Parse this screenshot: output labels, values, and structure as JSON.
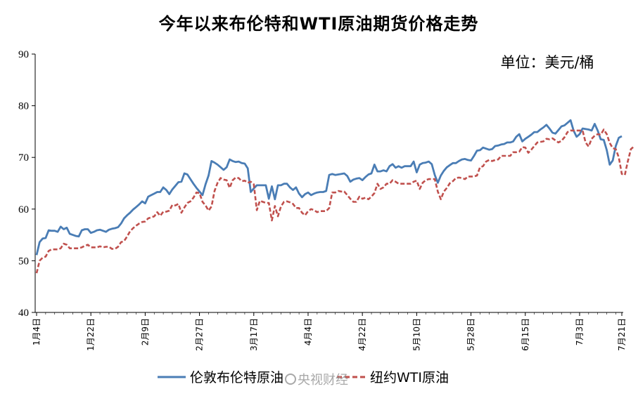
{
  "chart_data": {
    "type": "line",
    "title": "今年以来布伦特和WTI原油期货价格走势",
    "unit_label": "单位：美元/桶",
    "ylim": [
      40,
      90
    ],
    "yticks": [
      "40",
      "50",
      "60",
      "70",
      "80",
      "90"
    ],
    "xtick_labels": [
      "1月4日",
      "1月22日",
      "2月9日",
      "2月27日",
      "3月17日",
      "4月4日",
      "4月22日",
      "5月10日",
      "5月28日",
      "6月15日",
      "7月3日",
      "7月21日"
    ],
    "grid": false,
    "legend_position": "bottom",
    "series": [
      {
        "name": "伦敦布伦特原油",
        "color": "#4a7db5",
        "style": "solid",
        "values": [
          51.1,
          53.6,
          54.3,
          54.4,
          55.9,
          55.8,
          55.8,
          55.6,
          56.6,
          56.1,
          56.4,
          55.2,
          55.0,
          54.8,
          54.7,
          55.9,
          56.1,
          56.1,
          55.4,
          55.6,
          55.9,
          56.0,
          55.8,
          55.6,
          56.0,
          56.2,
          56.3,
          56.5,
          57.2,
          58.2,
          58.8,
          59.3,
          59.9,
          60.4,
          60.9,
          61.5,
          61.1,
          62.4,
          62.7,
          63.0,
          63.3,
          63.3,
          64.2,
          63.7,
          62.9,
          63.8,
          64.5,
          65.2,
          65.3,
          66.9,
          66.7,
          65.8,
          64.9,
          64.1,
          63.4,
          62.7,
          64.8,
          66.5,
          69.3,
          69.0,
          68.6,
          68.1,
          67.6,
          68.1,
          69.6,
          69.3,
          69.1,
          69.2,
          68.9,
          68.8,
          67.9,
          63.3,
          64.0,
          64.6,
          64.6,
          64.6,
          64.6,
          62.0,
          64.4,
          61.9,
          64.6,
          64.6,
          64.9,
          64.9,
          64.2,
          63.7,
          64.2,
          63.0,
          62.3,
          62.9,
          63.2,
          62.7,
          63.0,
          63.2,
          63.3,
          63.3,
          63.5,
          66.6,
          66.8,
          66.6,
          66.7,
          66.8,
          66.9,
          66.4,
          65.3,
          65.7,
          65.9,
          66.0,
          65.6,
          66.2,
          66.7,
          66.9,
          68.6,
          67.3,
          67.3,
          67.5,
          67.3,
          68.3,
          68.7,
          68.0,
          68.3,
          68.0,
          68.3,
          68.3,
          68.3,
          69.2,
          67.1,
          68.6,
          68.9,
          69.0,
          69.2,
          68.7,
          66.6,
          65.1,
          66.5,
          67.4,
          68.1,
          68.5,
          68.9,
          68.9,
          69.3,
          69.6,
          69.7,
          69.5,
          69.4,
          70.3,
          71.3,
          71.4,
          71.9,
          71.7,
          71.5,
          71.6,
          72.2,
          72.3,
          72.5,
          72.6,
          72.9,
          72.9,
          73.1,
          74.0,
          74.5,
          73.1,
          73.6,
          74.0,
          74.4,
          74.9,
          74.9,
          75.4,
          75.8,
          76.3,
          75.6,
          74.8,
          74.6,
          75.3,
          76.0,
          76.2,
          76.7,
          77.2,
          75.2,
          74.0,
          74.5,
          75.6,
          75.5,
          75.4,
          75.2,
          76.5,
          75.2,
          73.5,
          73.4,
          71.4,
          68.6,
          69.4,
          72.2,
          73.8,
          74.1
        ]
      },
      {
        "name": "纽约WTI原油",
        "color": "#c0504d",
        "style": "dashed",
        "values": [
          47.6,
          50.0,
          50.6,
          50.8,
          51.9,
          52.2,
          52.2,
          52.2,
          52.4,
          53.3,
          53.1,
          52.4,
          52.4,
          52.4,
          52.4,
          52.6,
          52.9,
          53.1,
          52.6,
          52.6,
          52.6,
          52.8,
          52.6,
          52.7,
          52.7,
          52.3,
          52.3,
          52.7,
          53.6,
          53.8,
          54.7,
          55.7,
          56.3,
          56.8,
          57.2,
          57.5,
          57.6,
          58.2,
          58.4,
          58.6,
          59.4,
          58.7,
          59.5,
          59.5,
          59.7,
          60.8,
          60.7,
          61.0,
          59.3,
          60.3,
          61.2,
          61.5,
          62.2,
          63.2,
          63.1,
          61.4,
          60.7,
          59.7,
          60.5,
          63.5,
          65.1,
          66.0,
          65.7,
          65.6,
          64.1,
          65.6,
          66.1,
          66.0,
          65.4,
          65.5,
          65.1,
          65.3,
          64.8,
          59.8,
          61.6,
          61.4,
          61.2,
          61.2,
          57.8,
          60.6,
          58.6,
          60.5,
          61.4,
          61.5,
          61.3,
          61.0,
          60.2,
          60.2,
          59.3,
          58.8,
          59.6,
          60.0,
          59.8,
          59.4,
          59.6,
          59.6,
          59.6,
          60.2,
          63.2,
          63.2,
          63.5,
          63.4,
          63.4,
          62.7,
          62.0,
          61.4,
          61.4,
          62.4,
          62.0,
          62.2,
          61.9,
          62.4,
          63.1,
          64.9,
          63.9,
          64.2,
          64.9,
          64.9,
          65.6,
          65.3,
          64.9,
          64.9,
          64.9,
          64.9,
          64.9,
          65.3,
          65.5,
          63.9,
          65.1,
          65.6,
          65.8,
          65.8,
          65.8,
          63.4,
          61.9,
          63.4,
          64.1,
          65.0,
          65.4,
          66.0,
          66.1,
          66.0,
          65.8,
          66.3,
          66.3,
          66.3,
          66.5,
          68.1,
          68.3,
          69.2,
          69.5,
          69.3,
          69.5,
          69.6,
          70.3,
          70.3,
          70.3,
          70.3,
          71.0,
          71.0,
          71.1,
          72.0,
          71.9,
          70.9,
          71.5,
          72.2,
          72.9,
          73.0,
          73.1,
          73.6,
          73.5,
          73.7,
          73.3,
          72.9,
          73.2,
          73.9,
          74.9,
          75.2,
          75.2,
          75.2,
          75.2,
          75.2,
          72.9,
          72.1,
          73.6,
          74.2,
          74.5,
          74.4,
          75.4,
          74.5,
          72.8,
          71.8,
          71.6,
          70.0,
          66.8,
          66.6,
          69.3,
          71.6,
          72.1
        ]
      }
    ]
  },
  "watermark": "央视财经"
}
